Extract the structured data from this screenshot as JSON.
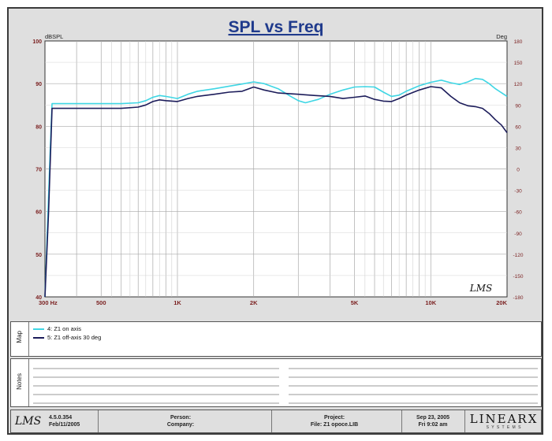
{
  "chart_data": {
    "type": "line",
    "title": "SPL vs Freq",
    "ylabel_left": "dBSPL",
    "ylabel_right": "Deg",
    "x_scale": "log",
    "xlim": [
      300,
      20000
    ],
    "ylim": [
      40,
      100
    ],
    "y2lim": [
      -180,
      180
    ],
    "grid": true,
    "x_ticks": [
      {
        "v": 300,
        "label": "300 Hz"
      },
      {
        "v": 500,
        "label": "500"
      },
      {
        "v": 1000,
        "label": "1K"
      },
      {
        "v": 2000,
        "label": "2K"
      },
      {
        "v": 5000,
        "label": "5K"
      },
      {
        "v": 10000,
        "label": "10K"
      },
      {
        "v": 20000,
        "label": "20K"
      }
    ],
    "y_ticks_left": [
      "100",
      "90",
      "80",
      "70",
      "60",
      "50",
      "40"
    ],
    "y_ticks_right": [
      "180",
      "150",
      "120",
      "90",
      "60",
      "30",
      "0",
      "-30",
      "-60",
      "-90",
      "-120",
      "-150",
      "-180"
    ],
    "series": [
      {
        "name": "4: Z1 on axis",
        "color": "#3fd6e4",
        "points": [
          [
            300,
            40
          ],
          [
            315,
            75
          ],
          [
            320,
            85.3
          ],
          [
            400,
            85.3
          ],
          [
            500,
            85.3
          ],
          [
            600,
            85.3
          ],
          [
            700,
            85.5
          ],
          [
            750,
            86
          ],
          [
            800,
            86.8
          ],
          [
            850,
            87.2
          ],
          [
            900,
            87
          ],
          [
            1000,
            86.5
          ],
          [
            1100,
            87.5
          ],
          [
            1200,
            88.2
          ],
          [
            1400,
            88.8
          ],
          [
            1600,
            89.4
          ],
          [
            1800,
            89.9
          ],
          [
            2000,
            90.4
          ],
          [
            2200,
            90
          ],
          [
            2500,
            88.8
          ],
          [
            2800,
            87
          ],
          [
            3000,
            86
          ],
          [
            3200,
            85.5
          ],
          [
            3600,
            86.3
          ],
          [
            4000,
            87.5
          ],
          [
            4500,
            88.5
          ],
          [
            5000,
            89.2
          ],
          [
            5500,
            89.3
          ],
          [
            6000,
            89.2
          ],
          [
            6500,
            88
          ],
          [
            7000,
            87
          ],
          [
            7500,
            87.3
          ],
          [
            8000,
            88.2
          ],
          [
            9000,
            89.5
          ],
          [
            10000,
            90.3
          ],
          [
            11000,
            90.8
          ],
          [
            12000,
            90.2
          ],
          [
            13000,
            89.8
          ],
          [
            14000,
            90.4
          ],
          [
            15000,
            91.2
          ],
          [
            16000,
            91
          ],
          [
            17000,
            90
          ],
          [
            18000,
            88.8
          ],
          [
            20000,
            87
          ]
        ]
      },
      {
        "name": "5: Z1 off-axis  30 deg",
        "color": "#1c1c5a",
        "points": [
          [
            300,
            40
          ],
          [
            310,
            60
          ],
          [
            320,
            84.2
          ],
          [
            400,
            84.2
          ],
          [
            500,
            84.2
          ],
          [
            600,
            84.2
          ],
          [
            700,
            84.5
          ],
          [
            750,
            85
          ],
          [
            800,
            85.8
          ],
          [
            850,
            86.2
          ],
          [
            900,
            86
          ],
          [
            1000,
            85.8
          ],
          [
            1100,
            86.5
          ],
          [
            1200,
            87
          ],
          [
            1400,
            87.5
          ],
          [
            1600,
            88
          ],
          [
            1800,
            88.2
          ],
          [
            2000,
            89.2
          ],
          [
            2200,
            88.5
          ],
          [
            2500,
            87.8
          ],
          [
            3000,
            87.5
          ],
          [
            3500,
            87.2
          ],
          [
            4000,
            87
          ],
          [
            4500,
            86.5
          ],
          [
            5000,
            86.8
          ],
          [
            5500,
            87.1
          ],
          [
            6000,
            86.3
          ],
          [
            6500,
            85.9
          ],
          [
            7000,
            85.8
          ],
          [
            7500,
            86.5
          ],
          [
            8000,
            87.3
          ],
          [
            9000,
            88.5
          ],
          [
            10000,
            89.3
          ],
          [
            11000,
            89
          ],
          [
            12000,
            87
          ],
          [
            13000,
            85.5
          ],
          [
            14000,
            84.8
          ],
          [
            15000,
            84.6
          ],
          [
            16000,
            84.2
          ],
          [
            17000,
            83
          ],
          [
            18000,
            81.5
          ],
          [
            19000,
            80.3
          ],
          [
            20000,
            78.5
          ]
        ]
      }
    ]
  },
  "map_label": "Map",
  "notes_label": "Notes",
  "footer": {
    "version": "4.5.0.354",
    "version_date": "Feb/11/2005",
    "person_label": "Person:",
    "company_label": "Company:",
    "project_label": "Project:",
    "file_label": "File: Z1 opoce.LIB",
    "date": "Sep 23, 2005",
    "time": "Fri 9:02 am",
    "brand": "LINEARX",
    "brand_sub": "S Y S T E M S",
    "lms_logo": "LMS"
  },
  "colors": {
    "frame": "#dfdfdf",
    "grid": "#a9a9a9",
    "title": "#1f3a8c",
    "tick_left": "#7a1f1f",
    "tick_right": "#7a1f1f",
    "tick_x": "#7a1f1f"
  }
}
